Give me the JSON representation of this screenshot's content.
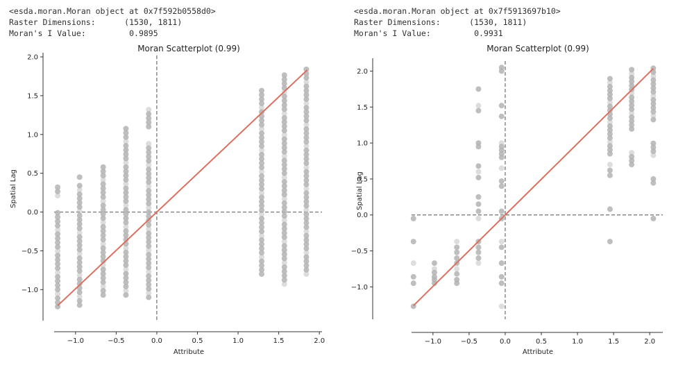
{
  "outputs": [
    {
      "repr": "<esda.moran.Moran object at 0x7f592b0558d0>",
      "dims_label": "Raster Dimensions:",
      "dims_value": "(1530, 1811)",
      "moran_label": "Moran's I Value:",
      "moran_value": "0.9895"
    },
    {
      "repr": "<esda.moran.Moran object at 0x7f5913697b10>",
      "dims_label": "Raster Dimensions:",
      "dims_value": "(1530, 1811)",
      "moran_label": "Moran's I Value:",
      "moran_value": "0.9931"
    }
  ],
  "chart_data": [
    {
      "type": "scatter",
      "title": "Moran Scatterplot (0.99)",
      "xlabel": "Attribute",
      "ylabel": "Spatial Lag",
      "xlim": [
        -1.4,
        2.05
      ],
      "ylim": [
        -1.4,
        2.0
      ],
      "xticks": [
        -1.0,
        -0.5,
        0.0,
        0.5,
        1.0,
        1.5,
        2.0
      ],
      "xtick_labels": [
        "−1.0",
        "−0.5",
        "0.0",
        "0.5",
        "1.0",
        "1.5",
        "2.0"
      ],
      "yticks": [
        -1.0,
        -0.5,
        0.0,
        0.5,
        1.0,
        1.5,
        2.0
      ],
      "ytick_labels": [
        "−1.0",
        "−0.5",
        "0.0",
        "0.5",
        "1.0",
        "1.5",
        "2.0"
      ],
      "grid": false,
      "point_color": "#b3b3b3",
      "regression_color": "#d9705f",
      "reference_line_color": "#808080",
      "regression": {
        "slope": 0.9895,
        "intercept": 0.0,
        "x_range": [
          -1.22,
          1.85
        ]
      },
      "columns": [
        {
          "x": -1.22,
          "y_min": -1.22,
          "y_max": 0.32,
          "gaps": [
            [
              0.02,
              0.17
            ],
            [
              -0.15,
              -0.12
            ]
          ]
        },
        {
          "x": -0.95,
          "y_min": -1.2,
          "y_max": 0.45,
          "gaps": [
            [
              0.35,
              0.42
            ]
          ]
        },
        {
          "x": -0.66,
          "y_min": -1.07,
          "y_max": 0.61
        },
        {
          "x": -0.38,
          "y_min": -1.07,
          "y_max": 1.08
        },
        {
          "x": -0.1,
          "y_min": -1.1,
          "y_max": 1.37,
          "gaps": [
            [
              0.9,
              1.1
            ]
          ]
        },
        {
          "x": 1.29,
          "y_min": -0.8,
          "y_max": 1.57
        },
        {
          "x": 1.57,
          "y_min": -0.93,
          "y_max": 1.79
        },
        {
          "x": 1.84,
          "y_min": -0.8,
          "y_max": 1.86
        }
      ]
    },
    {
      "type": "scatter",
      "title": "Moran Scatterplot (0.99)",
      "xlabel": "Attribute",
      "ylabel": "Spatial Lag",
      "xlim": [
        -1.45,
        2.2
      ],
      "ylim": [
        -1.45,
        2.12
      ],
      "xticks": [
        -1.0,
        -0.5,
        0.0,
        0.5,
        1.0,
        1.5,
        2.0
      ],
      "xtick_labels": [
        "−1.0",
        "−0.5",
        "0.0",
        "0.5",
        "1.0",
        "1.5",
        "2.0"
      ],
      "yticks": [
        -1.0,
        -0.5,
        0.0,
        0.5,
        1.0,
        1.5,
        2.0
      ],
      "ytick_labels": [
        "−1.0",
        "−0.5",
        "0.0",
        "0.5",
        "1.0",
        "1.5",
        "2.0"
      ],
      "grid": false,
      "point_color": "#b3b3b3",
      "regression_color": "#d9705f",
      "reference_line_color": "#808080",
      "regression": {
        "slope": 0.9931,
        "intercept": 0.0,
        "x_range": [
          -1.27,
          2.05
        ]
      },
      "points": [
        [
          -1.27,
          -0.05
        ],
        [
          -1.27,
          -0.37
        ],
        [
          -1.27,
          -0.67
        ],
        [
          -1.27,
          -0.86
        ],
        [
          -1.27,
          -0.95
        ],
        [
          -1.27,
          -1.27
        ],
        [
          -0.98,
          -0.67
        ],
        [
          -0.98,
          -0.75
        ],
        [
          -0.98,
          -0.8
        ],
        [
          -0.98,
          -0.86
        ],
        [
          -0.98,
          -0.9
        ],
        [
          -0.98,
          -0.95
        ],
        [
          -0.67,
          -0.37
        ],
        [
          -0.67,
          -0.45
        ],
        [
          -0.67,
          -0.52
        ],
        [
          -0.67,
          -0.6
        ],
        [
          -0.67,
          -0.67
        ],
        [
          -0.67,
          -0.75
        ],
        [
          -0.67,
          -0.82
        ],
        [
          -0.67,
          -0.9
        ],
        [
          -0.67,
          -0.95
        ],
        [
          -0.37,
          1.75
        ],
        [
          -0.37,
          1.52
        ],
        [
          -0.37,
          1.45
        ],
        [
          -0.37,
          1.0
        ],
        [
          -0.37,
          0.95
        ],
        [
          -0.37,
          0.68
        ],
        [
          -0.37,
          0.6
        ],
        [
          -0.37,
          0.52
        ],
        [
          -0.37,
          0.25
        ],
        [
          -0.37,
          0.15
        ],
        [
          -0.37,
          0.05
        ],
        [
          -0.37,
          -0.05
        ],
        [
          -0.37,
          -0.37
        ],
        [
          -0.37,
          -0.45
        ],
        [
          -0.37,
          -0.52
        ],
        [
          -0.37,
          -0.6
        ],
        [
          -0.37,
          -0.67
        ],
        [
          -0.05,
          2.05
        ],
        [
          -0.05,
          2.0
        ],
        [
          -0.05,
          1.52
        ],
        [
          -0.05,
          1.37
        ],
        [
          -0.05,
          1.0
        ],
        [
          -0.05,
          0.95
        ],
        [
          -0.05,
          0.9
        ],
        [
          -0.05,
          0.85
        ],
        [
          -0.05,
          0.8
        ],
        [
          -0.05,
          0.65
        ],
        [
          -0.05,
          0.47
        ],
        [
          -0.05,
          0.4
        ],
        [
          -0.05,
          0.05
        ],
        [
          -0.05,
          -0.05
        ],
        [
          -0.05,
          -0.37
        ],
        [
          -0.05,
          -0.45
        ],
        [
          -0.05,
          -0.67
        ],
        [
          -0.05,
          -0.86
        ],
        [
          -0.05,
          -0.95
        ],
        [
          -0.05,
          -1.27
        ],
        [
          1.45,
          -0.37
        ],
        [
          1.45,
          0.08
        ],
        [
          1.45,
          0.55
        ],
        [
          1.45,
          0.62
        ],
        [
          1.45,
          0.7
        ]
      ],
      "columns": [
        {
          "x": 1.45,
          "y_min": 0.85,
          "y_max": 1.9
        },
        {
          "x": 1.75,
          "y_min": 0.7,
          "y_max": 2.05,
          "gaps": [
            [
              0.9,
              1.15
            ]
          ]
        },
        {
          "x": 2.05,
          "y_min": -0.05,
          "y_max": 2.05,
          "gaps": [
            [
              0.0,
              0.4
            ],
            [
              0.5,
              0.8
            ],
            [
              1.05,
              1.3
            ]
          ]
        }
      ]
    }
  ]
}
